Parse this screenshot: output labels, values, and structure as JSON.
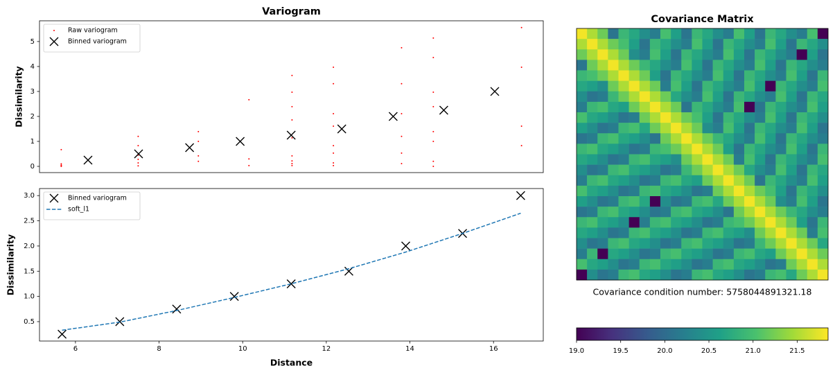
{
  "chart_data": [
    {
      "type": "scatter",
      "title": "Variogram",
      "ylabel": "Dissimilarity",
      "xlim": [
        5.14,
        17.19
      ],
      "ylim": [
        -0.25,
        5.83
      ],
      "yticks": [
        0,
        1,
        2,
        3,
        4,
        5
      ],
      "legend": "upper left",
      "series": [
        {
          "name": "Raw variogram",
          "color": "red",
          "marker": "dot",
          "x": [
            5.66,
            5.66,
            5.66,
            5.66,
            5.66,
            7.5,
            7.5,
            7.5,
            7.5,
            7.5,
            7.5,
            8.94,
            8.94,
            8.94,
            8.94,
            10.15,
            10.15,
            10.15,
            11.18,
            11.18,
            11.18,
            11.18,
            11.18,
            11.18,
            11.18,
            11.18,
            11.18,
            12.17,
            12.17,
            12.17,
            12.17,
            12.17,
            12.17,
            12.17,
            12.17,
            13.8,
            13.8,
            13.8,
            13.8,
            13.8,
            13.8,
            14.56,
            14.56,
            14.56,
            14.56,
            14.56,
            14.56,
            14.56,
            14.56,
            16.67,
            16.67,
            16.67,
            16.67
          ],
          "values": [
            0.67,
            0.1,
            0.05,
            0.02,
            0.0,
            1.2,
            0.83,
            0.45,
            0.28,
            0.14,
            0.02,
            1.39,
            1.0,
            0.42,
            0.2,
            2.67,
            0.3,
            0.03,
            3.64,
            2.97,
            2.39,
            1.86,
            1.14,
            0.42,
            0.22,
            0.11,
            0.03,
            3.97,
            3.31,
            2.11,
            1.61,
            0.83,
            0.53,
            0.14,
            0.03,
            4.75,
            3.31,
            2.11,
            1.2,
            0.53,
            0.11,
            5.14,
            4.36,
            2.97,
            2.39,
            1.39,
            1.0,
            0.2,
            0.0,
            5.56,
            3.97,
            1.61,
            0.83
          ]
        },
        {
          "name": "Binned variogram",
          "color": "black",
          "marker": "x",
          "x": [
            6.3,
            7.51,
            8.73,
            9.94,
            11.16,
            12.37,
            13.6,
            14.81,
            16.03
          ],
          "values": [
            0.25,
            0.5,
            0.75,
            1.0,
            1.25,
            1.5,
            2.0,
            2.25,
            3.0
          ]
        }
      ]
    },
    {
      "type": "scatter",
      "xlabel": "Distance",
      "ylabel": "Dissimilarity",
      "xlim": [
        5.14,
        17.19
      ],
      "ylim": [
        0.115,
        3.14
      ],
      "xticks": [
        6,
        8,
        10,
        12,
        14,
        16
      ],
      "yticks": [
        0.5,
        {
          "value": 1,
          "label": "1.0"
        },
        1.5,
        {
          "value": 2,
          "label": "2.0"
        },
        2.5,
        {
          "value": 3,
          "label": "3.0"
        }
      ],
      "legend": "upper left",
      "series": [
        {
          "name": "Binned variogram",
          "color": "black",
          "marker": "x",
          "x": [
            5.68,
            7.06,
            8.42,
            9.8,
            11.16,
            12.54,
            13.9,
            15.26,
            16.65
          ],
          "values": [
            0.25,
            0.5,
            0.75,
            1.0,
            1.25,
            1.5,
            2.0,
            2.25,
            3.0
          ]
        },
        {
          "name": "soft_l1",
          "color": "#1f77b4",
          "line": "dashed",
          "x": [
            5.68,
            7.06,
            8.42,
            9.8,
            11.16,
            12.54,
            13.9,
            15.26,
            16.65
          ],
          "values": [
            0.33,
            0.49,
            0.72,
            0.98,
            1.25,
            1.55,
            1.88,
            2.25,
            2.65
          ]
        }
      ]
    },
    {
      "type": "heatmap",
      "title": "Covariance Matrix",
      "annotation": "Covariance condition number: 5758044891321.18",
      "colormap": "viridis",
      "clim": [
        19.0,
        21.85
      ],
      "cticks": [
        {
          "value": 19,
          "label": "19.0"
        },
        19.5,
        {
          "value": 20,
          "label": "20.0"
        },
        20.5,
        {
          "value": 21,
          "label": "21.0"
        },
        21.5
      ],
      "values": [
        [
          21.8,
          21.5,
          21.2,
          20.1,
          20.9,
          20.7,
          20.4,
          20.2,
          21.0,
          20.6,
          20.1,
          20.9,
          20.7,
          20.4,
          20.2,
          21.0,
          20.6,
          20.1,
          20.9,
          20.7,
          20.4,
          20.2,
          21.0,
          19.0
        ],
        [
          21.5,
          21.8,
          21.5,
          21.2,
          21.0,
          20.6,
          20.1,
          20.9,
          20.7,
          20.4,
          20.2,
          21.0,
          20.6,
          20.1,
          20.9,
          20.7,
          20.4,
          20.2,
          21.0,
          20.6,
          20.1,
          20.9,
          20.7,
          20.4
        ],
        [
          21.2,
          21.5,
          21.8,
          21.5,
          21.2,
          20.4,
          20.2,
          21.0,
          20.6,
          20.1,
          20.9,
          20.7,
          20.4,
          20.2,
          21.0,
          20.6,
          20.1,
          20.9,
          20.7,
          20.4,
          20.2,
          19.0,
          20.6,
          20.1
        ],
        [
          20.1,
          21.2,
          21.5,
          21.8,
          21.5,
          21.2,
          20.9,
          20.7,
          20.4,
          20.2,
          21.0,
          20.6,
          20.1,
          20.9,
          20.7,
          20.4,
          20.2,
          21.0,
          20.6,
          20.1,
          20.9,
          20.7,
          20.4,
          20.2
        ],
        [
          20.9,
          21.0,
          21.2,
          21.5,
          21.8,
          21.5,
          21.2,
          20.6,
          20.1,
          20.9,
          20.7,
          20.4,
          20.2,
          21.0,
          20.6,
          20.1,
          20.9,
          20.7,
          20.4,
          20.2,
          21.0,
          20.6,
          20.1,
          20.9
        ],
        [
          20.7,
          20.6,
          20.4,
          21.2,
          21.5,
          21.8,
          21.5,
          21.2,
          20.2,
          21.0,
          20.6,
          20.1,
          20.9,
          20.7,
          20.4,
          20.2,
          21.0,
          20.6,
          19.0,
          20.9,
          20.7,
          20.4,
          20.2,
          21.0
        ],
        [
          20.4,
          20.1,
          20.2,
          20.9,
          21.2,
          21.5,
          21.8,
          21.5,
          21.2,
          20.7,
          20.4,
          20.2,
          21.0,
          20.6,
          20.1,
          20.9,
          20.7,
          20.4,
          20.2,
          21.0,
          20.6,
          20.1,
          20.9,
          20.7
        ],
        [
          20.2,
          20.9,
          21.0,
          20.7,
          20.6,
          21.2,
          21.5,
          21.8,
          21.5,
          21.2,
          20.1,
          20.9,
          20.7,
          20.4,
          20.2,
          21.0,
          19.0,
          20.1,
          20.9,
          20.7,
          20.4,
          20.2,
          21.0,
          20.6
        ],
        [
          21.0,
          20.7,
          20.6,
          20.4,
          20.1,
          20.2,
          21.2,
          21.5,
          21.8,
          21.5,
          21.2,
          21.0,
          20.6,
          20.1,
          20.9,
          20.7,
          20.4,
          20.2,
          21.0,
          20.6,
          20.1,
          20.9,
          20.7,
          20.4
        ],
        [
          20.6,
          20.4,
          20.1,
          20.2,
          20.9,
          21.0,
          20.7,
          21.2,
          21.5,
          21.8,
          21.5,
          21.2,
          20.4,
          20.2,
          21.0,
          20.6,
          20.1,
          20.9,
          20.7,
          20.4,
          20.2,
          21.0,
          20.6,
          20.1
        ],
        [
          20.1,
          20.2,
          20.9,
          21.0,
          20.7,
          20.6,
          20.4,
          20.1,
          21.2,
          21.5,
          21.8,
          21.5,
          21.2,
          20.9,
          20.7,
          20.4,
          20.2,
          21.0,
          20.6,
          20.1,
          20.9,
          20.7,
          20.4,
          20.2
        ],
        [
          20.9,
          21.0,
          20.7,
          20.6,
          20.4,
          20.1,
          20.2,
          20.9,
          21.0,
          21.2,
          21.5,
          21.8,
          21.5,
          21.2,
          20.6,
          20.1,
          20.9,
          20.7,
          20.4,
          20.2,
          21.0,
          20.6,
          20.1,
          20.9
        ],
        [
          20.7,
          20.6,
          20.4,
          20.1,
          20.2,
          20.9,
          21.0,
          20.7,
          20.6,
          20.4,
          21.2,
          21.5,
          21.8,
          21.5,
          21.2,
          20.2,
          21.0,
          20.6,
          20.1,
          20.9,
          20.7,
          20.4,
          20.2,
          21.0
        ],
        [
          20.4,
          20.1,
          20.2,
          20.9,
          21.0,
          20.7,
          20.6,
          20.4,
          20.1,
          20.2,
          20.9,
          21.2,
          21.5,
          21.8,
          21.5,
          21.2,
          20.7,
          20.4,
          20.2,
          21.0,
          20.6,
          20.1,
          20.9,
          20.7
        ],
        [
          20.2,
          20.9,
          21.0,
          20.7,
          20.6,
          20.4,
          20.1,
          20.2,
          20.9,
          21.0,
          20.7,
          20.6,
          21.2,
          21.5,
          21.8,
          21.5,
          21.2,
          20.1,
          20.9,
          20.7,
          20.4,
          20.2,
          21.0,
          20.6
        ],
        [
          21.0,
          20.7,
          20.6,
          20.4,
          20.1,
          20.2,
          20.9,
          21.0,
          20.7,
          20.6,
          20.4,
          20.1,
          20.2,
          21.2,
          21.5,
          21.8,
          21.5,
          21.2,
          21.0,
          20.6,
          20.1,
          20.9,
          20.7,
          20.4
        ],
        [
          20.6,
          20.4,
          20.1,
          20.2,
          20.9,
          21.0,
          20.7,
          19.0,
          20.4,
          20.1,
          20.2,
          20.9,
          21.0,
          20.7,
          21.2,
          21.5,
          21.8,
          21.5,
          21.2,
          20.4,
          20.2,
          21.0,
          20.6,
          20.1
        ],
        [
          20.1,
          20.2,
          20.9,
          21.0,
          20.7,
          20.6,
          20.4,
          20.1,
          20.2,
          20.9,
          21.0,
          20.7,
          20.6,
          20.4,
          20.1,
          21.2,
          21.5,
          21.8,
          21.5,
          21.2,
          20.9,
          20.7,
          20.4,
          20.2
        ],
        [
          20.9,
          21.0,
          20.7,
          20.6,
          20.4,
          19.0,
          20.2,
          20.9,
          21.0,
          20.7,
          20.6,
          20.4,
          20.1,
          20.2,
          20.9,
          21.0,
          21.2,
          21.5,
          21.8,
          21.5,
          21.2,
          20.6,
          20.1,
          20.9
        ],
        [
          20.7,
          20.6,
          20.4,
          20.1,
          20.2,
          20.9,
          21.0,
          20.7,
          20.6,
          20.4,
          20.1,
          20.2,
          20.9,
          21.0,
          20.7,
          20.6,
          20.4,
          21.2,
          21.5,
          21.8,
          21.5,
          21.2,
          20.2,
          21.0
        ],
        [
          20.4,
          20.1,
          20.2,
          20.9,
          21.0,
          20.7,
          20.6,
          20.4,
          20.1,
          20.2,
          20.9,
          21.0,
          20.7,
          20.6,
          20.4,
          20.1,
          20.2,
          20.9,
          21.2,
          21.5,
          21.8,
          21.5,
          21.2,
          20.7
        ],
        [
          20.2,
          20.9,
          19.0,
          20.7,
          20.6,
          20.4,
          20.1,
          20.2,
          20.9,
          21.0,
          20.7,
          20.6,
          20.4,
          20.1,
          20.2,
          20.9,
          21.0,
          20.7,
          20.6,
          21.2,
          21.5,
          21.8,
          21.5,
          21.2
        ],
        [
          21.0,
          20.7,
          20.6,
          20.4,
          20.1,
          20.2,
          20.9,
          21.0,
          20.7,
          20.6,
          20.4,
          20.1,
          20.2,
          20.9,
          21.0,
          20.7,
          20.6,
          20.4,
          20.1,
          20.2,
          21.2,
          21.5,
          21.8,
          21.5
        ],
        [
          19.0,
          20.4,
          20.1,
          20.2,
          20.9,
          21.0,
          20.7,
          20.6,
          20.4,
          20.1,
          20.2,
          20.9,
          21.0,
          20.7,
          20.6,
          20.4,
          20.1,
          20.2,
          20.9,
          21.0,
          20.7,
          21.2,
          21.5,
          21.8
        ]
      ]
    }
  ]
}
